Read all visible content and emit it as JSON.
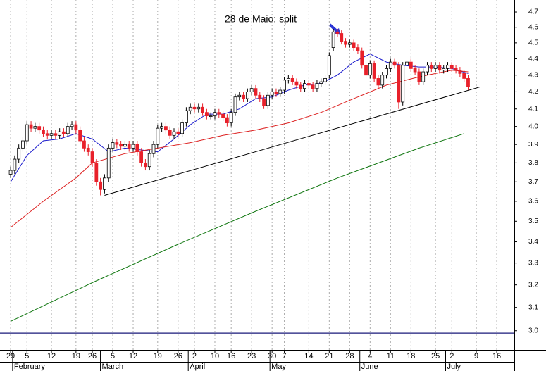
{
  "chart_data": {
    "type": "candlestick",
    "annotation": {
      "text": "28 de Maio: split",
      "color": "#2b35d6"
    },
    "log_scale": true,
    "grid": true,
    "up_color": "#ffffff",
    "down_color": "#e8202a",
    "xlim": [
      -2.6,
      123.3
    ],
    "ylim": [
      2.92,
      4.78
    ],
    "yticks": [
      {
        "value": 3,
        "label": "3.0"
      },
      3.1,
      3.2,
      3.3,
      3.4,
      3.5,
      3.6,
      3.7,
      3.8,
      3.9,
      {
        "value": 4,
        "label": "4.0"
      },
      4.1,
      4.2,
      4.3,
      4.4,
      4.5,
      4.6,
      4.7
    ],
    "xticks": [
      {
        "value": 0,
        "label": "29"
      },
      {
        "value": 4,
        "label": "5"
      },
      {
        "value": 10,
        "label": "12"
      },
      {
        "value": 16,
        "label": "19"
      },
      {
        "value": 20,
        "label": "26"
      },
      {
        "value": 25,
        "label": "5"
      },
      {
        "value": 30,
        "label": "12"
      },
      {
        "value": 36,
        "label": "19"
      },
      {
        "value": 41,
        "label": "26"
      },
      {
        "value": 45,
        "label": "2"
      },
      {
        "value": 50,
        "label": "10"
      },
      {
        "value": 54,
        "label": "16"
      },
      {
        "value": 59,
        "label": "23"
      },
      {
        "value": 64,
        "label": "30"
      },
      {
        "value": 67,
        "label": "7"
      },
      {
        "value": 73,
        "label": "14"
      },
      {
        "value": 78,
        "label": "21"
      },
      {
        "value": 83,
        "label": "28"
      },
      {
        "value": 88,
        "label": "4"
      },
      {
        "value": 93,
        "label": "11"
      },
      {
        "value": 98,
        "label": "18"
      },
      {
        "value": 104,
        "label": "25"
      },
      {
        "value": 108,
        "label": "2"
      },
      {
        "value": 114,
        "label": "9"
      },
      {
        "value": 119,
        "label": "16"
      }
    ],
    "month_ticks": [
      {
        "value": 1,
        "label": "February"
      },
      {
        "value": 22.5,
        "label": "March"
      },
      {
        "value": 44,
        "label": "April"
      },
      {
        "value": 64,
        "label": "May"
      },
      {
        "value": 86,
        "label": "June"
      },
      {
        "value": 107,
        "label": "July"
      }
    ],
    "x": [
      0,
      1,
      2,
      3,
      4,
      5,
      6,
      7,
      8,
      9,
      10,
      11,
      12,
      13,
      14,
      15,
      16,
      17,
      18,
      19,
      20,
      21,
      22,
      23,
      24,
      25,
      26,
      27,
      28,
      29,
      30,
      31,
      32,
      33,
      34,
      35,
      36,
      37,
      38,
      39,
      40,
      41,
      42,
      43,
      44,
      45,
      46,
      47,
      48,
      49,
      50,
      51,
      52,
      53,
      54,
      55,
      56,
      57,
      58,
      59,
      60,
      61,
      62,
      63,
      64,
      65,
      66,
      67,
      68,
      69,
      70,
      71,
      72,
      73,
      74,
      75,
      76,
      77,
      78,
      79,
      80,
      81,
      82,
      83,
      84,
      85,
      86,
      87,
      88,
      89,
      90,
      91,
      92,
      93,
      94,
      95,
      96,
      97,
      98,
      99,
      100,
      101,
      102,
      103,
      104,
      105,
      106,
      107,
      108,
      109,
      110,
      111,
      112
    ],
    "open": [
      3.74,
      3.76,
      3.82,
      3.88,
      3.92,
      4.01,
      3.99,
      4.0,
      3.98,
      3.96,
      3.95,
      3.96,
      3.95,
      3.97,
      3.96,
      4.0,
      4.01,
      3.98,
      3.92,
      3.88,
      3.86,
      3.8,
      3.7,
      3.66,
      3.72,
      3.88,
      3.91,
      3.9,
      3.89,
      3.9,
      3.88,
      3.9,
      3.86,
      3.8,
      3.78,
      3.85,
      3.9,
      3.99,
      4.0,
      3.98,
      3.95,
      3.97,
      3.96,
      4.02,
      4.09,
      4.11,
      4.1,
      4.11,
      4.08,
      4.06,
      4.06,
      4.08,
      4.07,
      4.05,
      4.02,
      4.08,
      4.17,
      4.18,
      4.16,
      4.2,
      4.22,
      4.18,
      4.16,
      4.12,
      4.18,
      4.2,
      4.19,
      4.21,
      4.27,
      4.28,
      4.26,
      4.24,
      4.22,
      4.25,
      4.24,
      4.22,
      4.25,
      4.26,
      4.3,
      4.47,
      4.57,
      4.56,
      4.51,
      4.49,
      4.5,
      4.47,
      4.45,
      4.36,
      4.3,
      4.37,
      4.28,
      4.24,
      4.3,
      4.34,
      4.38,
      4.36,
      4.14,
      4.36,
      4.38,
      4.34,
      4.32,
      4.26,
      4.32,
      4.36,
      4.34,
      4.36,
      4.33,
      4.34,
      4.36,
      4.34,
      4.33,
      4.31,
      4.28
    ],
    "high": [
      3.78,
      3.84,
      3.9,
      3.94,
      4.03,
      4.03,
      4.02,
      4.02,
      4.0,
      3.98,
      3.98,
      3.98,
      3.99,
      3.99,
      4.02,
      4.03,
      4.03,
      4.0,
      3.94,
      3.9,
      3.88,
      3.82,
      3.72,
      3.74,
      3.9,
      3.93,
      3.93,
      3.92,
      3.92,
      3.92,
      3.92,
      3.92,
      3.88,
      3.82,
      3.87,
      3.92,
      4.01,
      4.02,
      4.02,
      4.0,
      3.99,
      3.99,
      4.04,
      4.11,
      4.13,
      4.13,
      4.13,
      4.13,
      4.1,
      4.08,
      4.1,
      4.1,
      4.09,
      4.07,
      4.1,
      4.19,
      4.2,
      4.2,
      4.22,
      4.24,
      4.24,
      4.2,
      4.18,
      4.2,
      4.22,
      4.22,
      4.23,
      4.29,
      4.3,
      4.3,
      4.28,
      4.26,
      4.27,
      4.27,
      4.26,
      4.27,
      4.28,
      4.3,
      4.44,
      4.59,
      4.59,
      4.58,
      4.53,
      4.52,
      4.52,
      4.49,
      4.47,
      4.38,
      4.39,
      4.39,
      4.3,
      4.32,
      4.36,
      4.4,
      4.4,
      4.38,
      4.38,
      4.4,
      4.4,
      4.36,
      4.34,
      4.34,
      4.38,
      4.38,
      4.38,
      4.38,
      4.36,
      4.38,
      4.38,
      4.36,
      4.35,
      4.33,
      4.3
    ],
    "low": [
      3.72,
      3.74,
      3.8,
      3.86,
      3.9,
      3.97,
      3.97,
      3.96,
      3.94,
      3.93,
      3.93,
      3.93,
      3.93,
      3.94,
      3.94,
      3.98,
      3.96,
      3.9,
      3.86,
      3.84,
      3.78,
      3.68,
      3.63,
      3.64,
      3.7,
      3.86,
      3.88,
      3.87,
      3.87,
      3.86,
      3.86,
      3.84,
      3.78,
      3.76,
      3.76,
      3.83,
      3.88,
      3.97,
      3.96,
      3.93,
      3.93,
      3.94,
      3.94,
      4.0,
      4.07,
      4.08,
      4.08,
      4.06,
      4.04,
      4.04,
      4.04,
      4.05,
      4.03,
      4.0,
      4.0,
      4.06,
      4.15,
      4.14,
      4.14,
      4.18,
      4.16,
      4.14,
      4.1,
      4.1,
      4.16,
      4.17,
      4.17,
      4.19,
      4.25,
      4.24,
      4.22,
      4.2,
      4.2,
      4.22,
      4.2,
      4.2,
      4.23,
      4.24,
      4.28,
      4.45,
      4.54,
      4.49,
      4.47,
      4.47,
      4.45,
      4.43,
      4.34,
      4.28,
      4.28,
      4.26,
      4.22,
      4.22,
      4.28,
      4.32,
      4.34,
      4.1,
      4.12,
      4.34,
      4.32,
      4.3,
      4.24,
      4.24,
      4.3,
      4.32,
      4.32,
      4.31,
      4.31,
      4.32,
      4.32,
      4.31,
      4.29,
      4.26,
      4.21
    ],
    "close": [
      3.76,
      3.82,
      3.88,
      3.92,
      4.01,
      3.99,
      4.0,
      3.98,
      3.96,
      3.95,
      3.96,
      3.95,
      3.97,
      3.96,
      4.0,
      4.01,
      3.98,
      3.92,
      3.88,
      3.86,
      3.8,
      3.7,
      3.66,
      3.72,
      3.88,
      3.91,
      3.9,
      3.89,
      3.9,
      3.88,
      3.9,
      3.86,
      3.8,
      3.78,
      3.85,
      3.9,
      3.99,
      4.0,
      3.98,
      3.95,
      3.97,
      3.96,
      4.02,
      4.09,
      4.11,
      4.1,
      4.11,
      4.08,
      4.06,
      4.06,
      4.08,
      4.07,
      4.05,
      4.02,
      4.08,
      4.17,
      4.18,
      4.16,
      4.2,
      4.22,
      4.18,
      4.16,
      4.12,
      4.18,
      4.2,
      4.19,
      4.21,
      4.27,
      4.28,
      4.26,
      4.24,
      4.22,
      4.25,
      4.24,
      4.22,
      4.25,
      4.26,
      4.28,
      4.42,
      4.57,
      4.56,
      4.51,
      4.49,
      4.5,
      4.47,
      4.45,
      4.36,
      4.3,
      4.37,
      4.28,
      4.24,
      4.3,
      4.34,
      4.38,
      4.36,
      4.14,
      4.36,
      4.38,
      4.34,
      4.32,
      4.26,
      4.32,
      4.36,
      4.34,
      4.36,
      4.33,
      4.34,
      4.36,
      4.34,
      4.33,
      4.31,
      4.28,
      4.23
    ],
    "lines": [
      {
        "color": "#1a1acc",
        "x": [
          0,
          4,
          8,
          12,
          16,
          20,
          24,
          28,
          32,
          36,
          40,
          44,
          48,
          52,
          56,
          60,
          64,
          68,
          72,
          76,
          80,
          84,
          88,
          92,
          96,
          100,
          104,
          108,
          112
        ],
        "values": [
          3.7,
          3.84,
          3.92,
          3.93,
          3.96,
          3.93,
          3.86,
          3.88,
          3.87,
          3.86,
          3.93,
          4.01,
          4.07,
          4.07,
          4.1,
          4.16,
          4.17,
          4.21,
          4.24,
          4.25,
          4.3,
          4.38,
          4.43,
          4.38,
          4.36,
          4.35,
          4.35,
          4.34,
          4.31
        ]
      },
      {
        "color": "#dd2222",
        "x": [
          0,
          8,
          16,
          20,
          28,
          36,
          44,
          52,
          60,
          68,
          76,
          84,
          92,
          100,
          108,
          112
        ],
        "values": [
          3.47,
          3.6,
          3.72,
          3.8,
          3.85,
          3.88,
          3.91,
          3.95,
          3.98,
          4.02,
          4.08,
          4.16,
          4.24,
          4.29,
          4.33,
          4.32
        ]
      },
      {
        "color": "#117711",
        "x": [
          0,
          20,
          40,
          60,
          80,
          100,
          111
        ],
        "values": [
          3.04,
          3.21,
          3.38,
          3.55,
          3.72,
          3.88,
          3.96
        ]
      },
      {
        "color": "#000000",
        "x": [
          23,
          115
        ],
        "values": [
          3.63,
          4.23
        ]
      }
    ],
    "hline": {
      "value": 2.99,
      "color": "#1a1a7a"
    }
  }
}
